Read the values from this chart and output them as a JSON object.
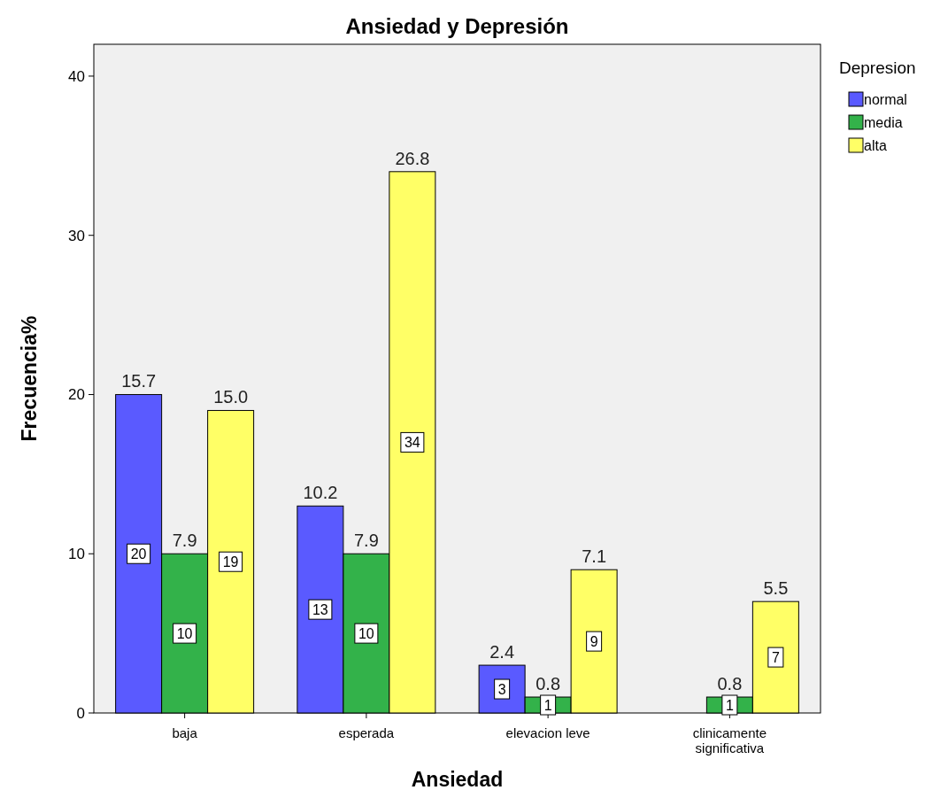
{
  "chart_data": {
    "type": "bar",
    "title": "Ansiedad y Depresión",
    "xlabel": "Ansiedad",
    "ylabel": "Frecuencia%",
    "legend_title": "Depresion",
    "categories": [
      "baja",
      "esperada",
      "elevacion leve",
      "clinicamente significativa"
    ],
    "series": [
      {
        "name": "normal",
        "color": "#5a5aff",
        "values": [
          20,
          13,
          3,
          null
        ]
      },
      {
        "name": "media",
        "color": "#33b24a",
        "values": [
          10,
          10,
          1,
          1
        ]
      },
      {
        "name": "alta",
        "color": "#ffff66",
        "values": [
          19,
          34,
          9,
          7
        ]
      }
    ],
    "annotations": [
      "15.7",
      "7.9",
      "15.0",
      "10.2",
      "7.9",
      "26.8",
      "2.4",
      "0.8",
      "7.1",
      "0.8",
      "5.5"
    ],
    "ylim": [
      0,
      42
    ],
    "yticks": [
      0,
      10,
      20,
      30,
      40
    ],
    "data_labels": true,
    "legend": "top right",
    "grid": false
  }
}
